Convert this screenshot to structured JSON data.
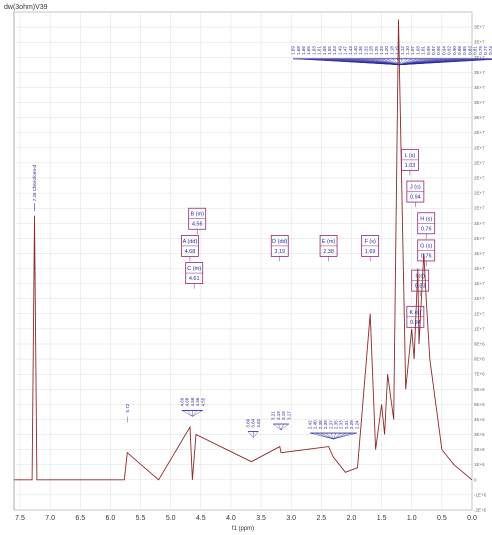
{
  "title": "dw(3ohm)V39",
  "chart_data": {
    "type": "line",
    "xlabel": "f1 (ppm)",
    "x_axis": {
      "reversed": true,
      "xlim": [
        7.6,
        0.0
      ],
      "ticks": [
        "7.5",
        "7.0",
        "6.5",
        "6.0",
        "5.5",
        "5.0",
        "4.5",
        "4.0",
        "3.5",
        "3.0",
        "2.5",
        "2.0",
        "1.5",
        "1.0",
        "0.5",
        "0.0"
      ]
    },
    "y_axis": {
      "position": "right",
      "ylim": [
        -2,
        31
      ],
      "tick_labels": [
        "-2E+6",
        "-1E+6",
        "0",
        "1E+6",
        "2E+6",
        "3E+6",
        "4E+6",
        "5E+6",
        "6E+6",
        "7E+6",
        "8E+6",
        "9E+6",
        "1E+7",
        "1E+7",
        "1E+7",
        "1E+7",
        "1E+7",
        "1E+7",
        "2E+7",
        "2E+7",
        "2E+7",
        "2E+7",
        "2E+7",
        "2E+7",
        "2E+7",
        "2E+7",
        "3E+7",
        "3E+7",
        "3E+7",
        "3E+7",
        "3E+7",
        "3E+7",
        "3E+7"
      ]
    },
    "grid": true,
    "line_color": "#8b2a2a",
    "label_color": "#2a2a9a",
    "box_color": "#8a2a7a",
    "series": [
      {
        "x": [
          7.6,
          7.3,
          7.26,
          7.22,
          5.77,
          5.72,
          5.2,
          4.68,
          4.64,
          4.58,
          3.66,
          3.19,
          3.17,
          2.38,
          2.3,
          2.1,
          1.9,
          1.69,
          1.6,
          1.5,
          1.45,
          1.4,
          1.3,
          1.22,
          1.1,
          1.0,
          0.96,
          0.9,
          0.88,
          0.8,
          0.76,
          0.7,
          0.5,
          0.3,
          0.0
        ],
        "y": [
          0,
          0,
          17.5,
          0,
          0,
          1.8,
          0,
          3.5,
          0,
          3.0,
          1.2,
          2.2,
          1.8,
          2.2,
          1.5,
          0.5,
          0.8,
          11.0,
          2.0,
          5.0,
          3.0,
          7.0,
          4.0,
          30.5,
          6.0,
          10.0,
          8.0,
          14.0,
          9.0,
          15.0,
          12.0,
          8.0,
          2.0,
          1.0,
          0
        ]
      }
    ],
    "peak_labels": [
      {
        "x": 7.26,
        "y_top": 17.8,
        "text": "7.26 Chloroform-d"
      },
      {
        "x": 5.72,
        "y_top": 3.8,
        "texts": [
          "5.72"
        ]
      },
      {
        "x": 4.64,
        "y_top": 4.2,
        "texts": [
          "4.69",
          "4.68",
          "4.58",
          "4.56",
          "4.55"
        ]
      },
      {
        "x": 3.63,
        "y_top": 2.8,
        "texts": [
          "3.66",
          "3.64",
          "3.62"
        ]
      },
      {
        "x": 3.17,
        "y_top": 3.3,
        "texts": [
          "3.21",
          "3.19",
          "3.18",
          "3.17"
        ]
      },
      {
        "x": 2.3,
        "y_top": 2.7,
        "texts": [
          "2.42",
          "2.40",
          "2.38",
          "2.39",
          "2.37",
          "2.35",
          "2.33",
          "2.31",
          "2.29",
          "2.24"
        ]
      },
      {
        "x": 1.2,
        "y_top": 27.5,
        "texts": [
          "1.69",
          "1.68",
          "1.66",
          "1.65",
          "1.63",
          "1.61",
          "1.58",
          "1.55",
          "1.53",
          "1.49",
          "1.47",
          "1.43",
          "1.40",
          "1.36",
          "1.32",
          "1.28",
          "1.25",
          "1.22",
          "1.20",
          "1.18",
          "1.15",
          "1.12",
          "1.10",
          "1.07",
          "1.03",
          "1.01",
          "0.99",
          "0.97",
          "0.96",
          "0.94",
          "0.92",
          "0.90",
          "0.88",
          "0.85",
          "0.83",
          "0.81",
          "0.79",
          "0.77",
          "0.74",
          "0.72",
          "0.70",
          "0.68"
        ]
      }
    ],
    "multiplets": [
      {
        "name": "A (dd)",
        "value": "4.68",
        "x": 4.68,
        "y": 15.5
      },
      {
        "name": "B (m)",
        "value": "4.56",
        "x": 4.56,
        "y": 17.3
      },
      {
        "name": "C (m)",
        "value": "4.61",
        "x": 4.61,
        "y": 13.7
      },
      {
        "name": "D (dd)",
        "value": "3.19",
        "x": 3.19,
        "y": 15.5
      },
      {
        "name": "E (m)",
        "value": "2.38",
        "x": 2.38,
        "y": 15.5
      },
      {
        "name": "F (s)",
        "value": "1.69",
        "x": 1.69,
        "y": 15.5
      },
      {
        "name": "L (s)",
        "value": "1.03",
        "x": 1.03,
        "y": 21.2
      },
      {
        "name": "J (s)",
        "value": "0.94",
        "x": 0.94,
        "y": 19.1
      },
      {
        "name": "H (s)",
        "value": "0.76",
        "x": 0.76,
        "y": 17.0
      },
      {
        "name": "G (s)",
        "value": "0.76",
        "x": 0.76,
        "y": 15.2
      },
      {
        "name": "I (s)",
        "value": "0.83",
        "x": 0.86,
        "y": 13.2
      },
      {
        "name": "K (s)",
        "value": "0.94",
        "x": 0.94,
        "y": 10.8
      }
    ]
  }
}
